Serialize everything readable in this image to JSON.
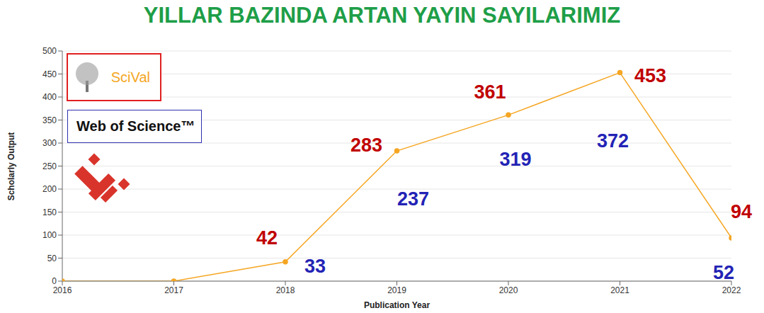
{
  "chart_data": {
    "type": "line",
    "title": "YILLAR BAZINDA ARTAN YAYIN SAYILARIMIZ",
    "x_label": "Publication Year",
    "y_label": "Scholarly Output",
    "x": [
      2016,
      2017,
      2018,
      2019,
      2020,
      2021,
      2022
    ],
    "xlim": [
      2016,
      2022
    ],
    "xticks": [
      2016,
      2017,
      2018,
      2019,
      2020,
      2021,
      2022
    ],
    "ylim": [
      0,
      500
    ],
    "yticks": [
      0,
      50,
      100,
      150,
      200,
      250,
      300,
      350,
      400,
      450,
      500
    ],
    "grid": true,
    "data_labels": true,
    "series": [
      {
        "name": "SciVal",
        "color": "#f5a623",
        "marker": "circle",
        "line_style": "solid",
        "values": [
          0,
          0,
          42,
          283,
          361,
          453,
          94
        ],
        "value_labels": [
          null,
          null,
          "42",
          "283",
          "361",
          "453",
          "94"
        ]
      },
      {
        "name": "Web of Science™",
        "color": "#2323b5",
        "marker": "none",
        "line_style": "none",
        "values": [
          null,
          null,
          33,
          237,
          319,
          372,
          52
        ]
      }
    ]
  }
}
